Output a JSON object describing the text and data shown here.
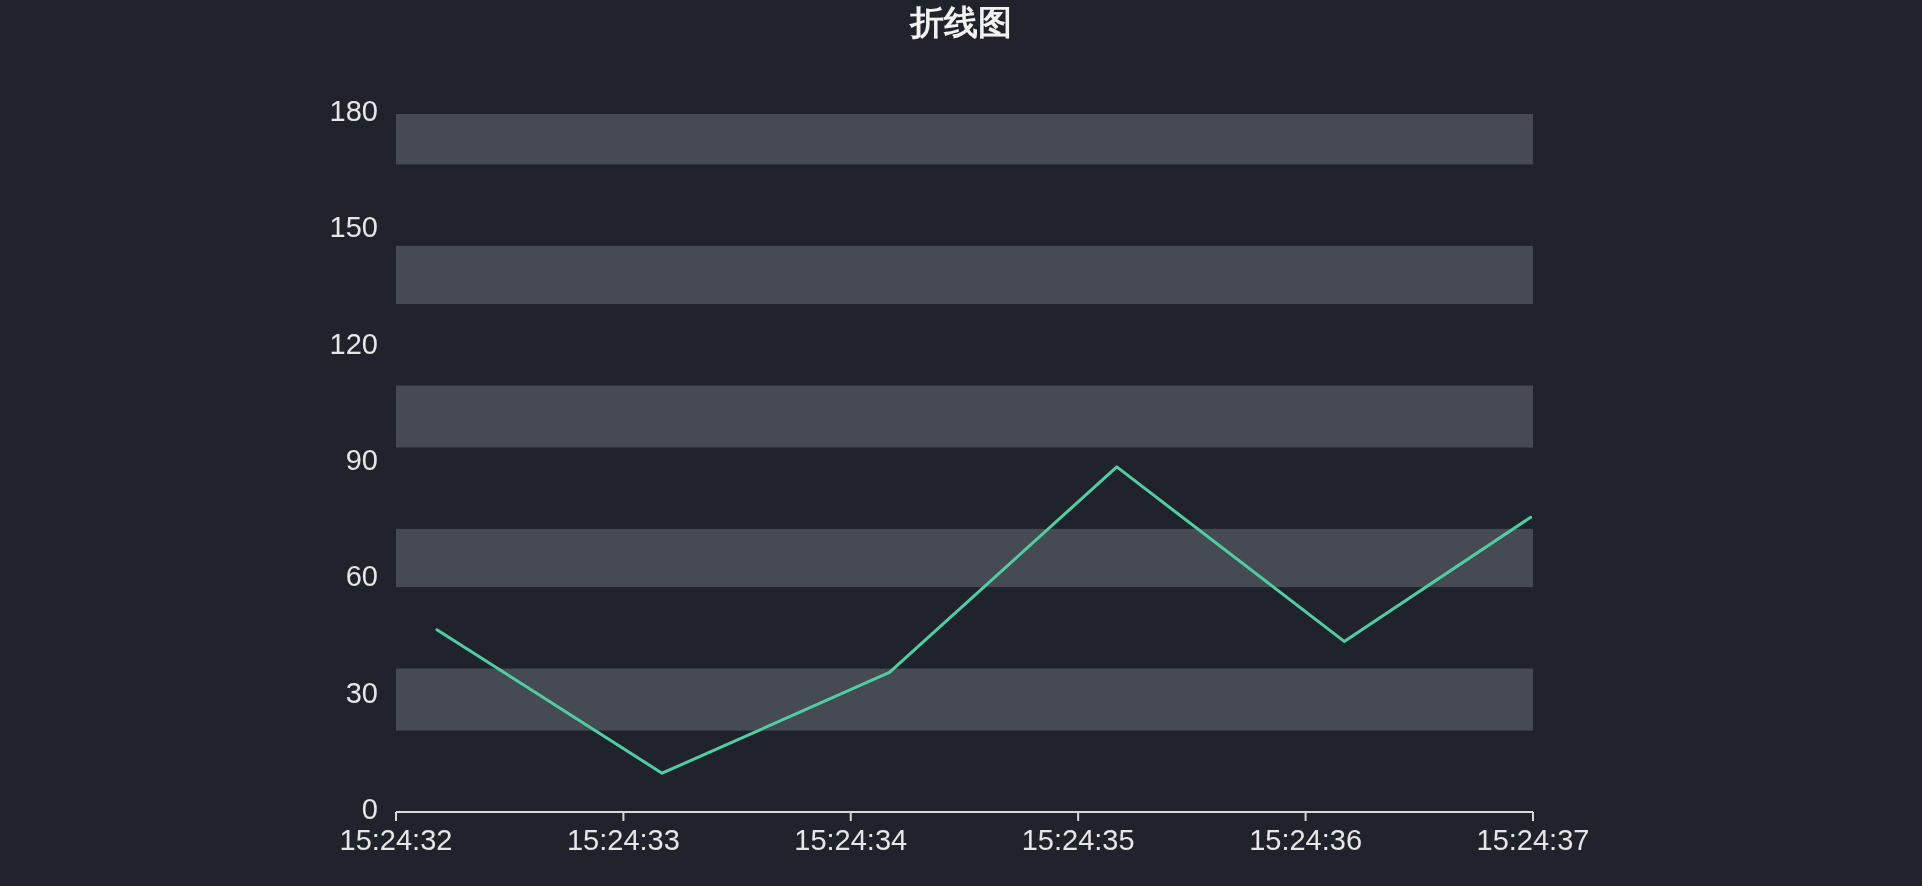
{
  "chart_data": {
    "type": "line",
    "title": "折线图",
    "x": [
      15.4089389,
      15.4092139,
      15.4094917,
      15.4097694,
      15.4100472,
      15.410275
    ],
    "series": [
      {
        "color": "#52cca3",
        "values": [
          47,
          10,
          36,
          89,
          44,
          76
        ]
      }
    ],
    "xlim": [
      15.4088889,
      15.4102778
    ],
    "xticks": [
      {
        "value": 15.4088889,
        "label": "15:24:32"
      },
      {
        "value": 15.4091667,
        "label": "15:24:33"
      },
      {
        "value": 15.4094444,
        "label": "15:24:34"
      },
      {
        "value": 15.4097222,
        "label": "15:24:35"
      },
      {
        "value": 15.41,
        "label": "15:24:36"
      },
      {
        "value": 15.4102778,
        "label": "15:24:37"
      }
    ],
    "ylim": [
      0,
      180
    ],
    "yticks": [
      0,
      30,
      60,
      90,
      120,
      150,
      180
    ],
    "bands": [
      {
        "axis": "y",
        "from": 21,
        "to": 37,
        "color": "#464a53"
      },
      {
        "axis": "y",
        "from": 58,
        "to": 73,
        "color": "#464a53"
      },
      {
        "axis": "y",
        "from": 94,
        "to": 110,
        "color": "#464a53"
      },
      {
        "axis": "y",
        "from": 131,
        "to": 146,
        "color": "#464a53"
      },
      {
        "axis": "y",
        "from": 167,
        "to": 180,
        "color": "#464a53"
      }
    ],
    "marker": "none",
    "line_style": "solid"
  }
}
